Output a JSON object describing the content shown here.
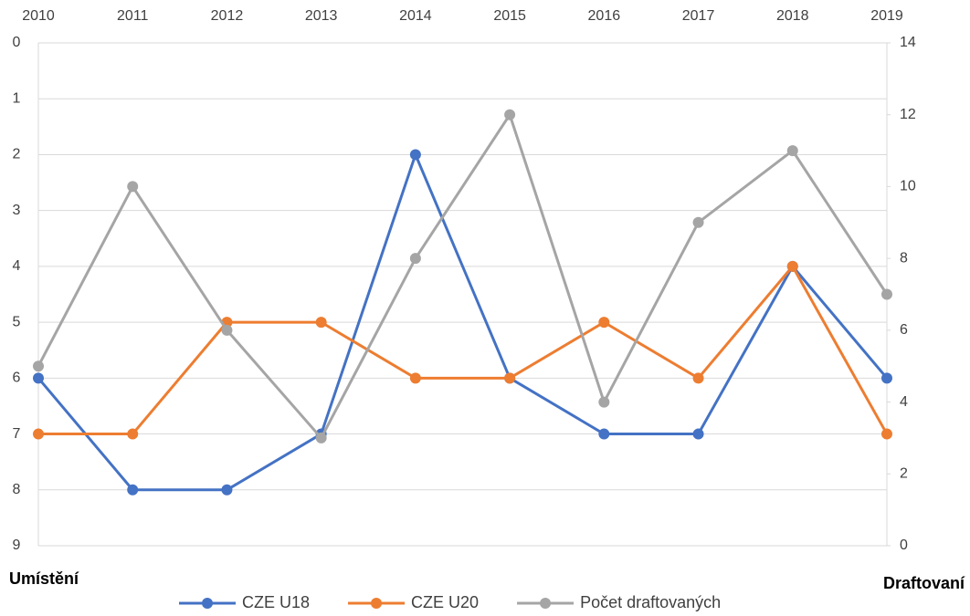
{
  "chart_data": {
    "type": "line",
    "categories": [
      "2010",
      "2011",
      "2012",
      "2013",
      "2014",
      "2015",
      "2016",
      "2017",
      "2018",
      "2019"
    ],
    "series": [
      {
        "name": "CZE U18",
        "color": "#4472c4",
        "values": [
          6,
          8,
          8,
          7,
          2,
          6,
          7,
          7,
          4,
          6
        ]
      },
      {
        "name": "CZE U20",
        "color": "#ed7d31",
        "values": [
          7,
          7,
          5,
          5,
          6,
          6,
          5,
          6,
          4,
          7
        ]
      },
      {
        "name": "Počet draftovaných",
        "color": "#a5a5a5",
        "axis": "y2",
        "values": [
          5,
          10,
          6,
          3,
          8,
          12,
          4,
          9,
          11,
          7
        ]
      }
    ],
    "ylabel": "Umístění",
    "y2label": "Draftovaní",
    "ylim": [
      0,
      9
    ],
    "yticks": [
      0,
      1,
      2,
      3,
      4,
      5,
      6,
      7,
      8,
      9
    ],
    "y_reversed": true,
    "y2lim": [
      0,
      14
    ],
    "y2ticks": [
      0,
      2,
      4,
      6,
      8,
      10,
      12,
      14
    ],
    "x_axis_position": "top",
    "grid": true,
    "legend": "bottom"
  }
}
